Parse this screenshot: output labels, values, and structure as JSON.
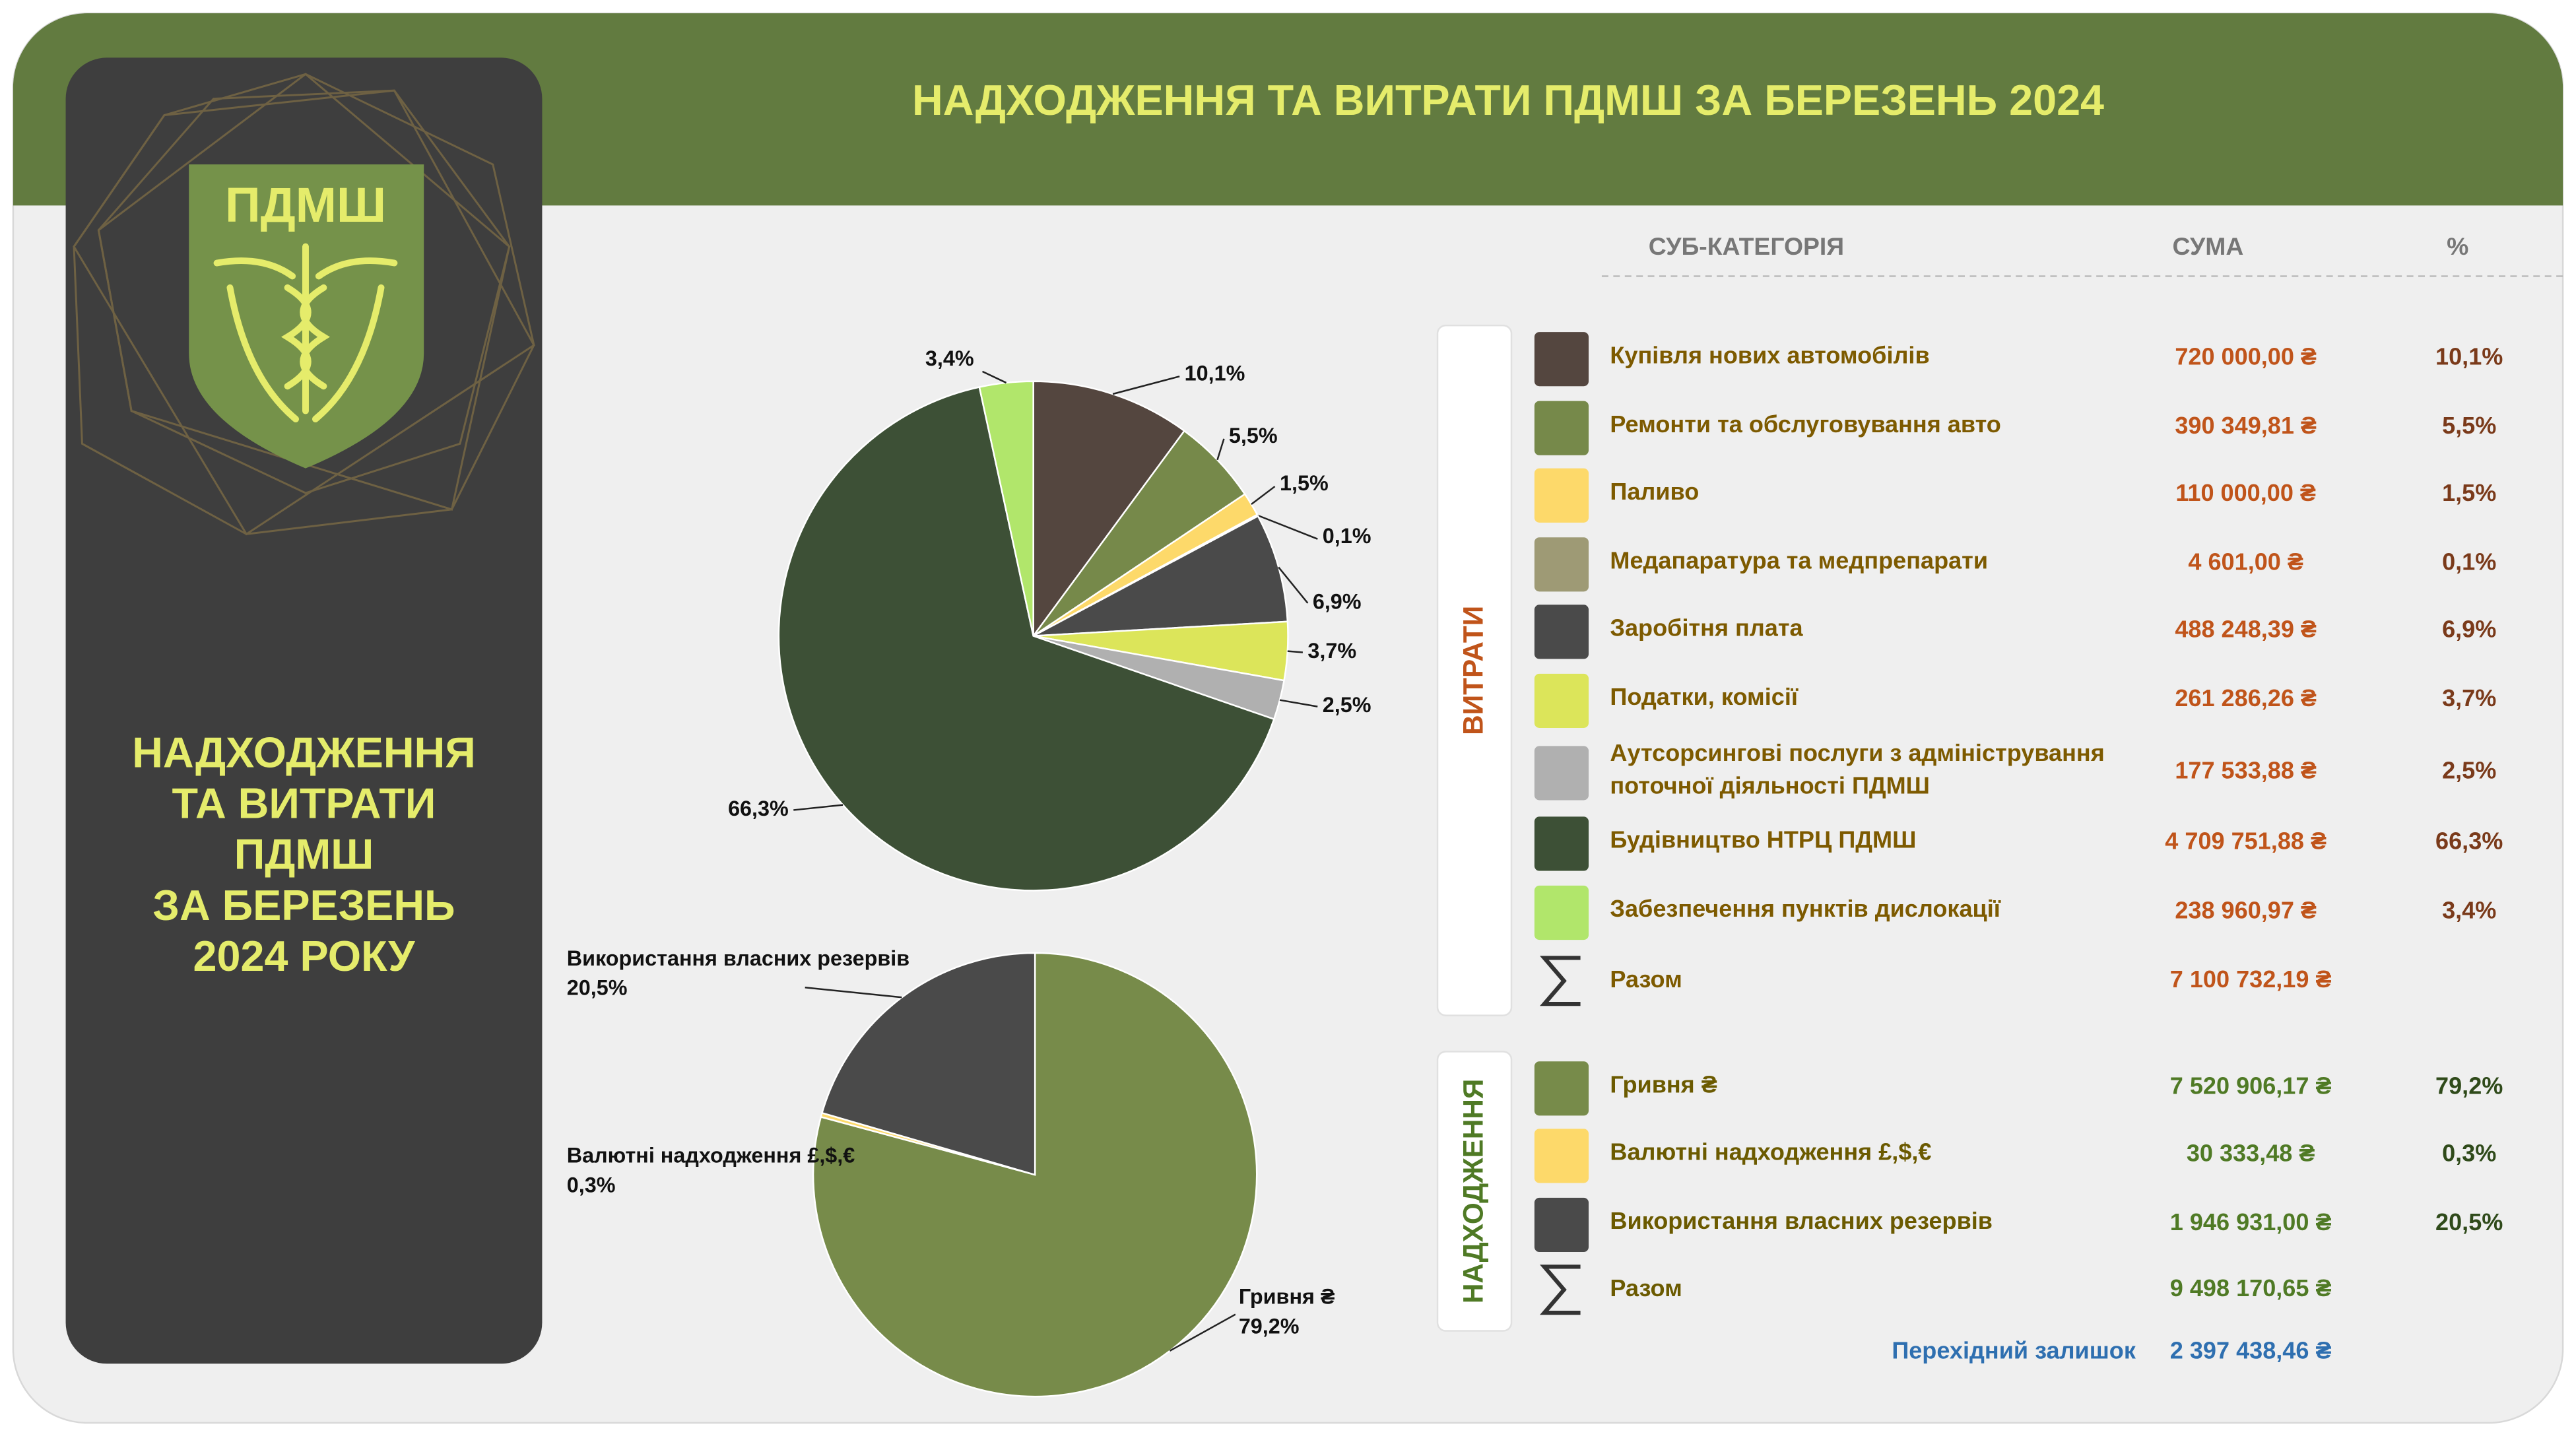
{
  "title": "НАДХОДЖЕННЯ ТА ВИТРАТИ ПДМШ ЗА БЕРЕЗЕНЬ 2024",
  "logo": "ПДМШ",
  "side_title": [
    "НАДХОДЖЕННЯ",
    "ТА ВИТРАТИ",
    "ПДМШ",
    "ЗА БЕРЕЗЕНЬ",
    "2024 РОКУ"
  ],
  "table": {
    "headers": [
      "СУБ-КАТЕГОРІЯ",
      "СУМА",
      "%"
    ],
    "expenses": {
      "label": "ВИТРАТИ",
      "sums": [
        "720 000,00 ₴",
        "390 349,81 ₴",
        "110 000,00 ₴",
        "4 601,00 ₴",
        "488 248,39 ₴",
        "261 286,26 ₴",
        "177 533,88 ₴",
        "4 709 751,88 ₴",
        "238 960,97 ₴"
      ],
      "total_label": "Разом",
      "total": "7 100 732,19 ₴"
    },
    "income": {
      "label": "НАДХОДЖЕННЯ",
      "sums": [
        "7 520 906,17 ₴",
        "30 333,48 ₴",
        "1 946 931,00 ₴"
      ],
      "total_label": "Разом",
      "total": "9 498 170,65 ₴"
    },
    "carryover": {
      "label": "Перехідний залишок",
      "sum": "2 397 438,46 ₴"
    }
  },
  "chart_data": [
    {
      "type": "pie",
      "categories": [
        "Купівля нових автомобілів",
        "Ремонти та обслуговування авто",
        "Паливо",
        "Медапаратура та медпрепарати",
        "Заробітня плата",
        "Податки, комісії",
        "Аутсорсингові послуги з адміністрування поточної діяльності ПДМШ",
        "Будівництво НТРЦ ПДМШ",
        "Забезпечення пунктів дислокації"
      ],
      "values": [
        10.1,
        5.5,
        1.5,
        0.1,
        6.9,
        3.7,
        2.5,
        66.3,
        3.4
      ],
      "value_labels": [
        "10,1%",
        "5,5%",
        "1,5%",
        "0,1%",
        "6,9%",
        "3,7%",
        "2,5%",
        "66,3%",
        "3,4%"
      ],
      "colors": [
        "#54463f",
        "#76894a",
        "#fdd96a",
        "#9e9a75",
        "#4a4a4a",
        "#dce55a",
        "#b0b0b0",
        "#3d5036",
        "#b1e66b"
      ]
    },
    {
      "type": "pie",
      "categories": [
        "Гривня ₴",
        "Валютні надходження £,$,€",
        "Використання власних резервів"
      ],
      "values": [
        79.2,
        0.3,
        20.5
      ],
      "value_labels": [
        "79,2%",
        "0,3%",
        "20,5%"
      ],
      "colors": [
        "#778b4a",
        "#fdd96a",
        "#4a4a4a"
      ]
    }
  ]
}
